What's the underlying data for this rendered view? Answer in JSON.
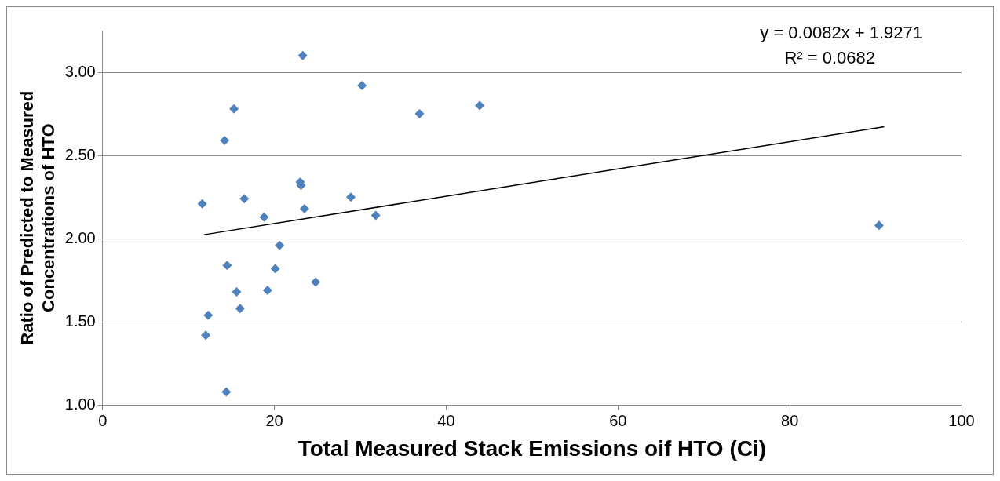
{
  "chart_data": {
    "type": "scatter",
    "xlabel": "Total Measured Stack Emissions oif HTO (Ci)",
    "ylabel": "Ratio of Predicted to Measured Concentrations of HTO",
    "x": [
      23.3,
      30.2,
      15.3,
      36.9,
      43.9,
      14.2,
      23.0,
      23.1,
      11.6,
      16.5,
      23.5,
      28.9,
      31.8,
      18.8,
      90.4,
      20.6,
      14.5,
      20.1,
      24.8,
      15.6,
      19.2,
      12.3,
      16.0,
      12.0,
      14.4
    ],
    "series": [
      {
        "type": "scatter",
        "color": "#4f81bd",
        "marker": "diamond",
        "values": [
          3.1,
          2.92,
          2.78,
          2.75,
          2.8,
          2.59,
          2.34,
          2.32,
          2.21,
          2.24,
          2.18,
          2.25,
          2.14,
          2.13,
          2.08,
          1.96,
          1.84,
          1.82,
          1.74,
          1.68,
          1.69,
          1.54,
          1.58,
          1.42,
          1.08
        ]
      },
      {
        "type": "line",
        "color": "#000000",
        "marker": "none",
        "line_style": "solid",
        "x": [
          11.8,
          91
        ],
        "values": [
          2.024,
          2.673
        ]
      }
    ],
    "xlim": [
      0,
      100
    ],
    "xticks": [
      0,
      20,
      40,
      60,
      80,
      100
    ],
    "ylim": [
      1,
      3.25
    ],
    "yticks": [
      {
        "value": 1,
        "label": "1.00"
      },
      {
        "value": 1.5,
        "label": "1.50"
      },
      {
        "value": 2,
        "label": "2.00"
      },
      {
        "value": 2.5,
        "label": "2.50"
      },
      {
        "value": 3,
        "label": "3.00"
      }
    ],
    "grid": "y",
    "legend": false,
    "annotations": [
      "y = 0.0082x + 1.9271",
      "R² = 0.0682"
    ]
  }
}
